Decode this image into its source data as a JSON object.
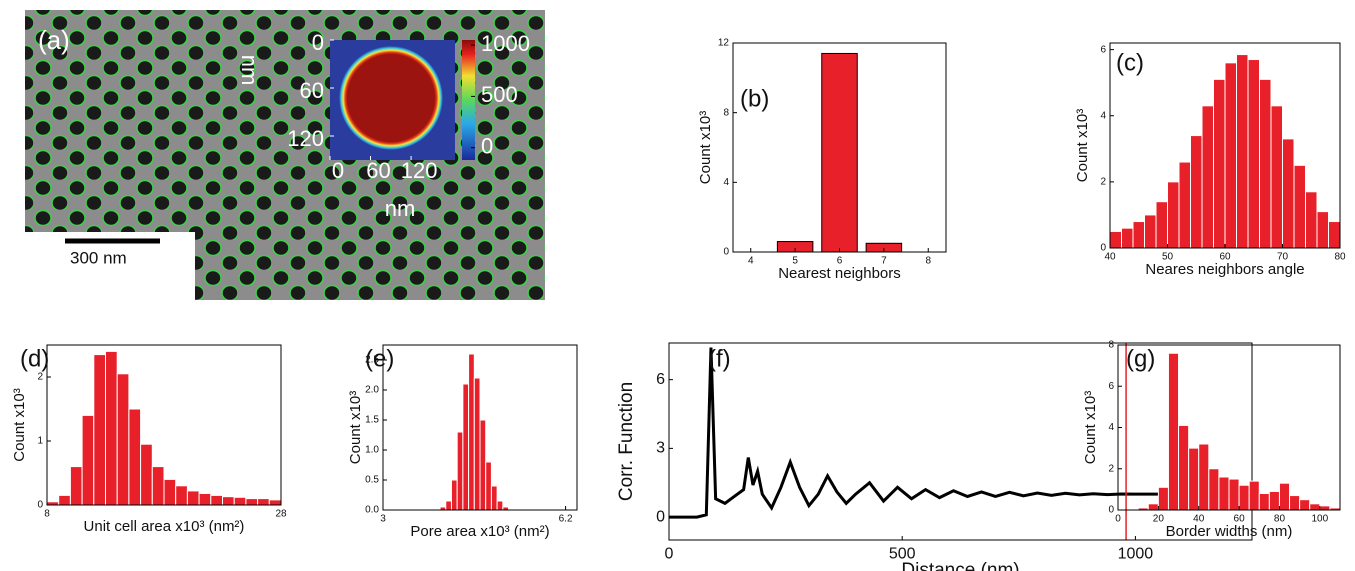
{
  "chart_data": [
    {
      "type": "image",
      "label": "(a)",
      "scale_bar": "300 nm",
      "inset": {
        "xlim": [
          0,
          185
        ],
        "ylim": [
          0,
          150
        ],
        "xticks": [
          0,
          60,
          120
        ],
        "yticks": [
          0,
          60,
          120
        ],
        "xlabel": "nm",
        "ylabel": "nm",
        "colorbar_lim": [
          -120,
          1050
        ],
        "colorbar_ticks": [
          0,
          500,
          1000
        ]
      }
    },
    {
      "type": "bar",
      "label": "(b)",
      "xlabel": "Nearest neighbors",
      "ylabel": "Count x10³",
      "x": [
        5,
        6,
        7
      ],
      "values": [
        0.6,
        11.4,
        0.5
      ],
      "color": "#e8202a",
      "edgecolor": "#000000",
      "xlim": [
        3.6,
        8.4
      ],
      "xticks": [
        4,
        5,
        6,
        7,
        8
      ],
      "ylim": [
        0,
        12
      ],
      "yticks": [
        0,
        4,
        8,
        12
      ]
    },
    {
      "type": "histogram",
      "label": "(c)",
      "xlabel": "Neares neighbors angle",
      "ylabel": "Count x10³",
      "bins": [
        40,
        42,
        44,
        46,
        48,
        50,
        52,
        54,
        56,
        58,
        60,
        62,
        64,
        66,
        68,
        70,
        72,
        74,
        76,
        78,
        80
      ],
      "values": [
        0.5,
        0.6,
        0.8,
        1.0,
        1.4,
        2.0,
        2.6,
        3.4,
        4.3,
        5.1,
        5.6,
        5.85,
        5.7,
        5.1,
        4.3,
        3.3,
        2.5,
        1.7,
        1.1,
        0.8
      ],
      "color": "#e8202a",
      "edgecolor": "#ffffff",
      "xlim": [
        40,
        80
      ],
      "xticks": [
        40,
        50,
        60,
        70,
        80
      ],
      "ylim": [
        0,
        6.2
      ],
      "yticks": [
        0,
        2,
        4,
        6
      ]
    },
    {
      "type": "histogram",
      "label": "(d)",
      "xlabel": "Unit cell area x10³ (nm²)",
      "ylabel": "Count x10³",
      "bins": [
        8,
        9,
        10,
        11,
        12,
        13,
        14,
        15,
        16,
        17,
        18,
        19,
        20,
        21,
        22,
        23,
        24,
        25,
        26,
        27,
        28
      ],
      "values": [
        0.05,
        0.15,
        0.6,
        1.4,
        2.35,
        2.4,
        2.05,
        1.5,
        0.95,
        0.6,
        0.4,
        0.3,
        0.22,
        0.18,
        0.15,
        0.13,
        0.12,
        0.1,
        0.1,
        0.08
      ],
      "color": "#e8202a",
      "edgecolor": "#ffffff",
      "xlim": [
        8,
        28
      ],
      "xticks": [
        8,
        28
      ],
      "ylim": [
        0,
        2.5
      ],
      "yticks": [
        0,
        1,
        2
      ]
    },
    {
      "type": "histogram",
      "label": "(e)",
      "xlabel": "Pore area x10³ (nm²)",
      "ylabel": "Count x10³",
      "bins": [
        4.0,
        4.1,
        4.2,
        4.3,
        4.4,
        4.5,
        4.6,
        4.7,
        4.8,
        4.9,
        5.0,
        5.1,
        5.2
      ],
      "values": [
        0.05,
        0.15,
        0.5,
        1.3,
        2.1,
        2.6,
        2.2,
        1.5,
        0.8,
        0.4,
        0.15,
        0.05
      ],
      "color": "#e8202a",
      "edgecolor": "#ffffff",
      "xlim": [
        3,
        6.4
      ],
      "xticks": [
        3,
        6.2
      ],
      "ylim": [
        0,
        2.75
      ],
      "yticks": [
        {
          "value": 0,
          "label": "0.0"
        },
        0.5,
        {
          "value": 1,
          "label": "1.0"
        },
        1.5,
        {
          "value": 2,
          "label": "2.0"
        },
        2.5
      ]
    },
    {
      "type": "line",
      "label": "(f)",
      "xlabel": "Distance (nm)",
      "ylabel": "Corr. Function",
      "x": [
        0,
        20,
        40,
        60,
        80,
        90,
        100,
        120,
        140,
        160,
        170,
        180,
        190,
        200,
        220,
        240,
        260,
        280,
        300,
        320,
        340,
        360,
        380,
        400,
        430,
        460,
        490,
        520,
        550,
        580,
        610,
        640,
        670,
        700,
        730,
        760,
        790,
        820,
        850,
        880,
        910,
        940,
        970,
        1000,
        1050,
        1100,
        1150,
        1200,
        1250
      ],
      "values": [
        0,
        0,
        0,
        0,
        0.1,
        7.4,
        0.8,
        0.6,
        0.9,
        1.2,
        2.6,
        1.4,
        2.0,
        1.0,
        0.4,
        1.3,
        2.4,
        1.3,
        0.5,
        1.0,
        1.8,
        1.1,
        0.6,
        1.0,
        1.5,
        0.7,
        1.3,
        0.8,
        1.2,
        0.85,
        1.15,
        0.9,
        1.1,
        0.9,
        1.08,
        0.93,
        1.05,
        0.95,
        1.04,
        0.97,
        1.02,
        0.98,
        1.01,
        1.0,
        1.0,
        1.0,
        1.0,
        1.0,
        1.0
      ],
      "color": "#000000",
      "marker_x": 980,
      "marker_color": "#e8202a",
      "xlim": [
        0,
        1250
      ],
      "xticks": [
        0,
        500,
        1000
      ],
      "ylim": [
        -1,
        7.6
      ],
      "yticks": [
        0,
        3,
        6
      ]
    },
    {
      "type": "histogram",
      "label": "(g)",
      "xlabel": "Border widths (nm)",
      "ylabel": "Count x10³",
      "bins": [
        10,
        15,
        20,
        25,
        30,
        35,
        40,
        45,
        50,
        55,
        60,
        65,
        70,
        75,
        80,
        85,
        90,
        95,
        100,
        105,
        110
      ],
      "values": [
        0.1,
        0.3,
        1.1,
        7.6,
        4.1,
        3.0,
        3.2,
        2.0,
        1.6,
        1.5,
        1.2,
        1.4,
        0.8,
        0.9,
        1.3,
        0.7,
        0.5,
        0.3,
        0.2,
        0.1
      ],
      "color": "#e8202a",
      "edgecolor": "#ffffff",
      "xlim": [
        0,
        110
      ],
      "xticks": [
        0,
        20,
        40,
        60,
        80,
        100
      ],
      "ylim": [
        0,
        8
      ],
      "yticks": [
        0,
        2,
        4,
        6,
        8
      ]
    }
  ]
}
